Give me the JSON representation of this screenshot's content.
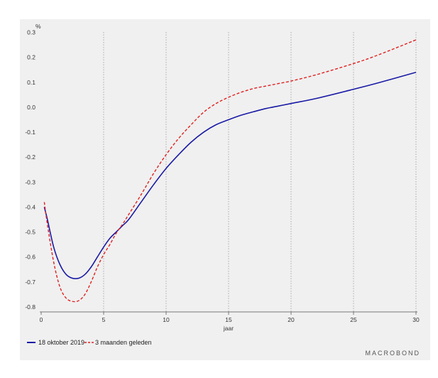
{
  "chart_data": {
    "type": "line",
    "ylabel": "%",
    "xlabel": "jaar",
    "xlim": [
      0,
      30
    ],
    "ylim": [
      -0.82,
      0.33
    ],
    "xticks": [
      0,
      5,
      10,
      15,
      20,
      25,
      30
    ],
    "yticks": [
      0.3,
      0.2,
      0.1,
      0.0,
      -0.1,
      -0.2,
      -0.3,
      -0.4,
      -0.5,
      -0.6,
      -0.7,
      -0.8
    ],
    "ytick_labels": [
      "0.3",
      "0.2",
      "0.1",
      "0.0",
      "-0.1",
      "-0.2",
      "-0.3",
      "-0.4",
      "-0.5",
      "-0.6",
      "-0.7",
      "-0.8"
    ],
    "vertical_grid": true,
    "legend_position": "bottom-left",
    "series": [
      {
        "name": "18 oktober 2019",
        "color": "#1a1aa6",
        "style": "solid",
        "x": [
          0.25,
          0.5,
          1,
          1.5,
          2,
          2.5,
          3,
          3.5,
          4,
          4.5,
          5,
          5.5,
          6,
          6.5,
          7,
          8,
          9,
          10,
          11,
          12,
          13,
          14,
          15,
          16,
          17,
          18,
          19,
          20,
          22,
          25,
          27,
          30
        ],
        "y": [
          -0.4,
          -0.45,
          -0.56,
          -0.63,
          -0.67,
          -0.685,
          -0.685,
          -0.67,
          -0.64,
          -0.6,
          -0.56,
          -0.525,
          -0.5,
          -0.475,
          -0.45,
          -0.38,
          -0.31,
          -0.245,
          -0.19,
          -0.14,
          -0.1,
          -0.07,
          -0.05,
          -0.032,
          -0.018,
          -0.005,
          0.005,
          0.015,
          0.035,
          0.072,
          0.098,
          0.14
        ]
      },
      {
        "name": "3 maanden geleden",
        "color": "#e02020",
        "style": "dashed",
        "x": [
          0.25,
          0.5,
          1,
          1.5,
          2,
          2.5,
          3,
          3.5,
          4,
          4.5,
          5,
          5.5,
          6,
          6.5,
          7,
          8,
          9,
          10,
          11,
          12,
          13,
          14,
          15,
          16,
          17,
          18,
          19,
          20,
          22,
          25,
          27,
          30
        ],
        "y": [
          -0.38,
          -0.47,
          -0.62,
          -0.72,
          -0.765,
          -0.778,
          -0.775,
          -0.75,
          -0.7,
          -0.64,
          -0.59,
          -0.55,
          -0.505,
          -0.47,
          -0.43,
          -0.35,
          -0.265,
          -0.19,
          -0.125,
          -0.07,
          -0.02,
          0.015,
          0.04,
          0.06,
          0.075,
          0.085,
          0.095,
          0.105,
          0.13,
          0.175,
          0.21,
          0.27
        ]
      }
    ]
  },
  "legend": {
    "items": [
      "18 oktober 2019",
      "3 maanden geleden"
    ]
  },
  "brand": "MACROBOND"
}
